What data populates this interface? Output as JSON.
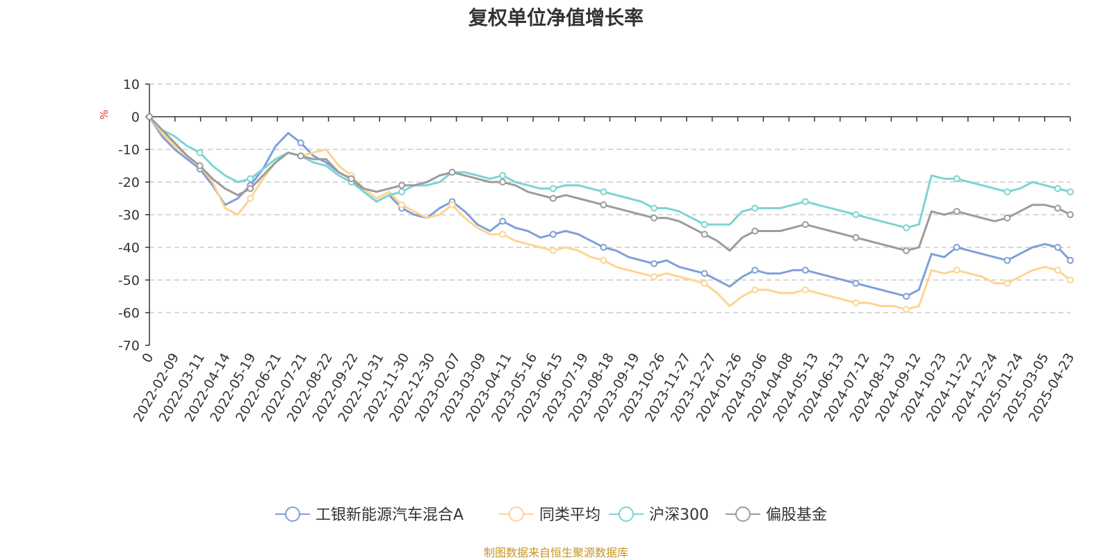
{
  "chart_data": {
    "type": "line",
    "title": "复权单位净值增长率",
    "ylabel": "%",
    "ylim": [
      -70,
      10
    ],
    "yticks": [
      10,
      0,
      -10,
      -20,
      -30,
      -40,
      -50,
      -60,
      -70
    ],
    "grid": true,
    "legend_position": "bottom",
    "x_start_label": "0",
    "x_tick_labels": [
      "2022-02-09",
      "2022-03-11",
      "2022-04-14",
      "2022-05-19",
      "2022-06-21",
      "2022-07-21",
      "2022-08-22",
      "2022-09-22",
      "2022-10-31",
      "2022-11-30",
      "2022-12-30",
      "2023-02-07",
      "2023-03-09",
      "2023-04-11",
      "2023-05-16",
      "2023-06-15",
      "2023-07-19",
      "2023-08-18",
      "2023-09-19",
      "2023-10-26",
      "2023-11-27",
      "2023-12-27",
      "2024-01-26",
      "2024-03-06",
      "2024-04-08",
      "2024-05-13",
      "2024-06-13",
      "2024-07-12",
      "2024-08-13",
      "2024-09-12",
      "2024-10-23",
      "2024-11-22",
      "2024-12-24",
      "2025-01-24",
      "2025-03-05",
      "2025-04-23"
    ],
    "x": [
      "0",
      "2022-01-24",
      "2022-02-09",
      "2022-02-24",
      "2022-03-11",
      "2022-03-28",
      "2022-04-14",
      "2022-05-04",
      "2022-05-19",
      "2022-06-06",
      "2022-06-21",
      "2022-07-06",
      "2022-07-21",
      "2022-08-05",
      "2022-08-22",
      "2022-09-06",
      "2022-09-22",
      "2022-10-14",
      "2022-10-31",
      "2022-11-15",
      "2022-11-30",
      "2022-12-15",
      "2022-12-30",
      "2023-01-16",
      "2023-02-07",
      "2023-02-22",
      "2023-03-09",
      "2023-03-24",
      "2023-04-11",
      "2023-04-26",
      "2023-05-16",
      "2023-05-31",
      "2023-06-15",
      "2023-07-04",
      "2023-07-19",
      "2023-08-03",
      "2023-08-18",
      "2023-09-04",
      "2023-09-19",
      "2023-10-11",
      "2023-10-26",
      "2023-11-10",
      "2023-11-27",
      "2023-12-12",
      "2023-12-27",
      "2024-01-11",
      "2024-01-26",
      "2024-02-19",
      "2024-03-06",
      "2024-03-21",
      "2024-04-08",
      "2024-04-25",
      "2024-05-13",
      "2024-05-28",
      "2024-06-13",
      "2024-06-28",
      "2024-07-12",
      "2024-07-29",
      "2024-08-13",
      "2024-08-28",
      "2024-09-12",
      "2024-09-27",
      "2024-10-23",
      "2024-11-07",
      "2024-11-22",
      "2024-12-09",
      "2024-12-24",
      "2025-01-09",
      "2025-01-24",
      "2025-02-17",
      "2025-03-05",
      "2025-03-20",
      "2025-04-07",
      "2025-04-23"
    ],
    "series": [
      {
        "name": "工银新能源汽车混合A",
        "color": "#7f9fd8",
        "values": [
          0,
          -6,
          -10,
          -13,
          -16,
          -21,
          -27,
          -25,
          -21,
          -16,
          -9,
          -5,
          -8,
          -12,
          -14,
          -17,
          -19,
          -23,
          -26,
          -24,
          -28,
          -30,
          -31,
          -28,
          -26,
          -29,
          -33,
          -35,
          -32,
          -34,
          -35,
          -37,
          -36,
          -35,
          -36,
          -38,
          -40,
          -41,
          -43,
          -44,
          -45,
          -44,
          -46,
          -47,
          -48,
          -50,
          -52,
          -49,
          -47,
          -48,
          -48,
          -47,
          -47,
          -48,
          -49,
          -50,
          -51,
          -52,
          -53,
          -54,
          -55,
          -53,
          -42,
          -43,
          -40,
          -41,
          -42,
          -43,
          -44,
          -42,
          -40,
          -39,
          -40,
          -44
        ]
      },
      {
        "name": "同类平均",
        "color": "#fdd491",
        "values": [
          0,
          -5,
          -9,
          -12,
          -15,
          -20,
          -28,
          -30,
          -25,
          -19,
          -14,
          -11,
          -12,
          -11,
          -10,
          -15,
          -18,
          -22,
          -25,
          -23,
          -27,
          -29,
          -31,
          -30,
          -27,
          -31,
          -34,
          -36,
          -36,
          -38,
          -39,
          -40,
          -41,
          -40,
          -41,
          -43,
          -44,
          -46,
          -47,
          -48,
          -49,
          -48,
          -49,
          -50,
          -51,
          -54,
          -58,
          -55,
          -53,
          -53,
          -54,
          -54,
          -53,
          -54,
          -55,
          -56,
          -57,
          -57,
          -58,
          -58,
          -59,
          -58,
          -47,
          -48,
          -47,
          -48,
          -49,
          -51,
          -51,
          -49,
          -47,
          -46,
          -47,
          -50
        ]
      },
      {
        "name": "沪深300",
        "color": "#7dd3d3",
        "values": [
          0,
          -4,
          -6,
          -9,
          -11,
          -15,
          -18,
          -20,
          -19,
          -16,
          -13,
          -11,
          -12,
          -14,
          -15,
          -18,
          -20,
          -23,
          -26,
          -24,
          -23,
          -21,
          -21,
          -20,
          -17,
          -17,
          -18,
          -19,
          -18,
          -20,
          -21,
          -22,
          -22,
          -21,
          -21,
          -22,
          -23,
          -24,
          -25,
          -26,
          -28,
          -28,
          -29,
          -31,
          -33,
          -33,
          -33,
          -29,
          -28,
          -28,
          -28,
          -27,
          -26,
          -27,
          -28,
          -29,
          -30,
          -31,
          -32,
          -33,
          -34,
          -33,
          -18,
          -19,
          -19,
          -20,
          -21,
          -22,
          -23,
          -22,
          -20,
          -21,
          -22,
          -23
        ]
      },
      {
        "name": "偏股基金",
        "color": "#9b9b9b",
        "values": [
          0,
          -4,
          -8,
          -12,
          -15,
          -19,
          -22,
          -24,
          -22,
          -18,
          -14,
          -11,
          -12,
          -13,
          -13,
          -17,
          -19,
          -22,
          -23,
          -22,
          -21,
          -21,
          -20,
          -18,
          -17,
          -18,
          -19,
          -20,
          -20,
          -21,
          -23,
          -24,
          -25,
          -24,
          -25,
          -26,
          -27,
          -28,
          -29,
          -30,
          -31,
          -31,
          -32,
          -34,
          -36,
          -38,
          -41,
          -37,
          -35,
          -35,
          -35,
          -34,
          -33,
          -34,
          -35,
          -36,
          -37,
          -38,
          -39,
          -40,
          -41,
          -40,
          -29,
          -30,
          -29,
          -30,
          -31,
          -32,
          -31,
          -29,
          -27,
          -27,
          -28,
          -30
        ]
      }
    ]
  },
  "footer": {
    "source": "制图数据来自恒生聚源数据库"
  }
}
